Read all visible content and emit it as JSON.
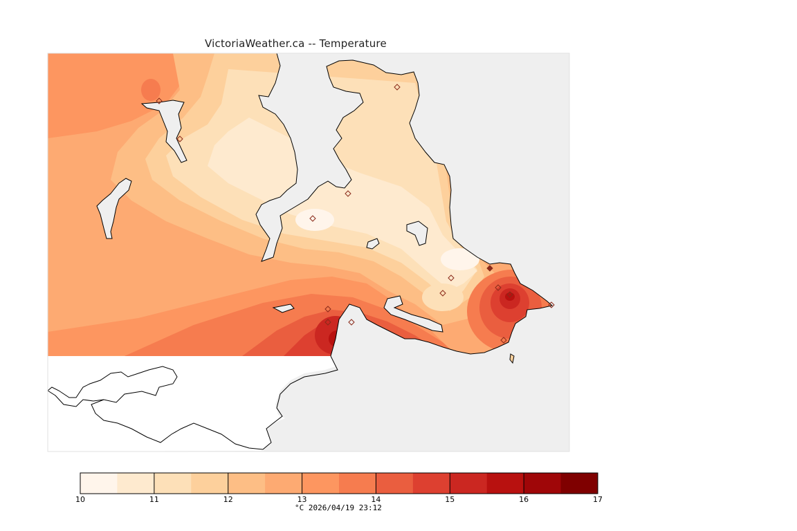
{
  "title": "VictoriaWeather.ca -- Temperature",
  "colorbar": {
    "ticks": [
      "10",
      "11",
      "12",
      "13",
      "14",
      "15",
      "16",
      "17"
    ],
    "min": 10,
    "max": 17,
    "step": 0.5,
    "colors": [
      "#fff5eb",
      "#feeacf",
      "#fde0b8",
      "#fdd09c",
      "#fdbe85",
      "#fdaa72",
      "#fd9660",
      "#f67c4f",
      "#ea5e3f",
      "#dd4030",
      "#cb2721",
      "#b8110f",
      "#9f0608",
      "#7f0000"
    ]
  },
  "units_label": "°C  2026/04/19 23:12",
  "colors": {
    "water": "#efefef",
    "outside": "#ffffff",
    "coast": "#000000",
    "station_marker": "#9a3020"
  }
}
